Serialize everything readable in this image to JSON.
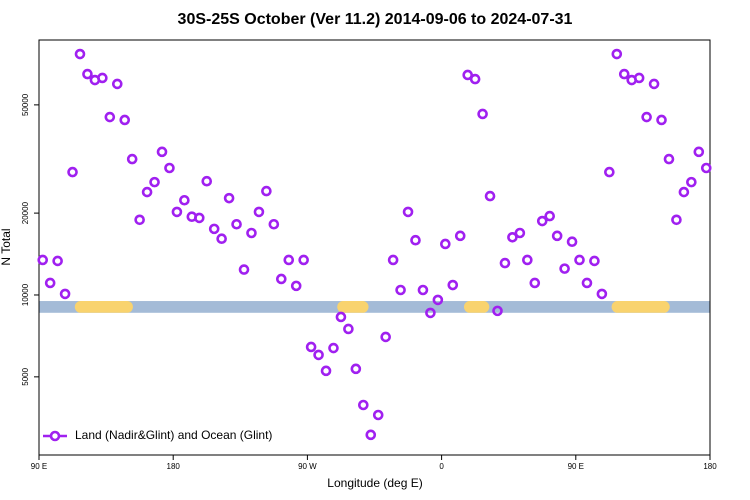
{
  "chart_data": {
    "type": "scatter",
    "title": "30S-25S October (Ver 11.2)   2014-09-06 to 2024-07-31",
    "xlabel": "Longitude (deg E)",
    "ylabel": "N Total",
    "log_y": true,
    "legend": "bottom-left",
    "xlim": [
      90,
      540
    ],
    "xticks": [
      {
        "value": 90,
        "label": "90 E"
      },
      180,
      {
        "value": 270,
        "label": "90 W"
      },
      {
        "value": 360,
        "label": "0"
      },
      {
        "value": 450,
        "label": "90 E"
      },
      {
        "value": 540,
        "label": "180"
      }
    ],
    "ylim": [
      2580,
      86600
    ],
    "yticks": [
      5000,
      10000,
      20000,
      50000
    ],
    "surface_band": {
      "range": [
        8600,
        9500
      ],
      "ocean_color": "#a4bbd7",
      "land_color": "#f9d36e",
      "land": [
        [
          114,
          153
        ],
        [
          290,
          311
        ],
        [
          375,
          392
        ],
        [
          474,
          513
        ]
      ]
    },
    "x": [
      92.5,
      97.5,
      102.5,
      107.5,
      112.5,
      117.5,
      122.5,
      127.5,
      132.5,
      137.5,
      142.5,
      147.5,
      152.5,
      157.5,
      162.5,
      167.5,
      172.5,
      177.5,
      182.5,
      187.5,
      192.5,
      197.5,
      202.5,
      207.5,
      212.5,
      217.5,
      222.5,
      227.5,
      232.5,
      237.5,
      242.5,
      247.5,
      252.5,
      257.5,
      262.5,
      267.5,
      272.5,
      277.5,
      282.5,
      287.5,
      292.5,
      297.5,
      302.5,
      307.5,
      312.5,
      317.5,
      322.5,
      327.5,
      332.5,
      337.5,
      342.5,
      347.5,
      352.5,
      357.5,
      362.5,
      367.5,
      372.5,
      377.5,
      382.5,
      387.5,
      392.5,
      397.5,
      402.5,
      407.5,
      412.5,
      417.5,
      422.5,
      427.5,
      432.5,
      437.5,
      442.5,
      447.5,
      452.5,
      457.5,
      462.5,
      467.5,
      472.5,
      477.5,
      482.5,
      487.5,
      492.5,
      497.5,
      502.5,
      507.5,
      512.5,
      517.5,
      522.5,
      527.5,
      532.5,
      537.5
    ],
    "series": [
      {
        "name": "Land (Nadir&Glint) and Ocean (Glint)",
        "color": "#a020f0",
        "values": [
          13450,
          11070,
          13340,
          10090,
          28300,
          76900,
          64900,
          61700,
          62800,
          45100,
          59700,
          44000,
          31600,
          18900,
          23900,
          26000,
          33600,
          29300,
          20200,
          22300,
          19400,
          19200,
          26200,
          17500,
          16100,
          22700,
          18200,
          12400,
          16900,
          20200,
          24100,
          18200,
          11450,
          13450,
          10800,
          13450,
          6440,
          6020,
          5260,
          6380,
          8300,
          7500,
          5350,
          3940,
          3060,
          3620,
          7010,
          13450,
          10430,
          20200,
          15900,
          10430,
          8590,
          9590,
          15400,
          10880,
          16500,
          64400,
          62200,
          46300,
          23100,
          8740,
          13100,
          16300,
          16900,
          13450,
          11070,
          18700,
          19500,
          16500,
          12500,
          15700,
          13450,
          11070,
          13340,
          10090,
          28300,
          76900,
          64900,
          61700,
          62800,
          45100,
          59700,
          44000,
          31600,
          18900,
          23900,
          26000,
          33600,
          29300
        ]
      }
    ]
  }
}
